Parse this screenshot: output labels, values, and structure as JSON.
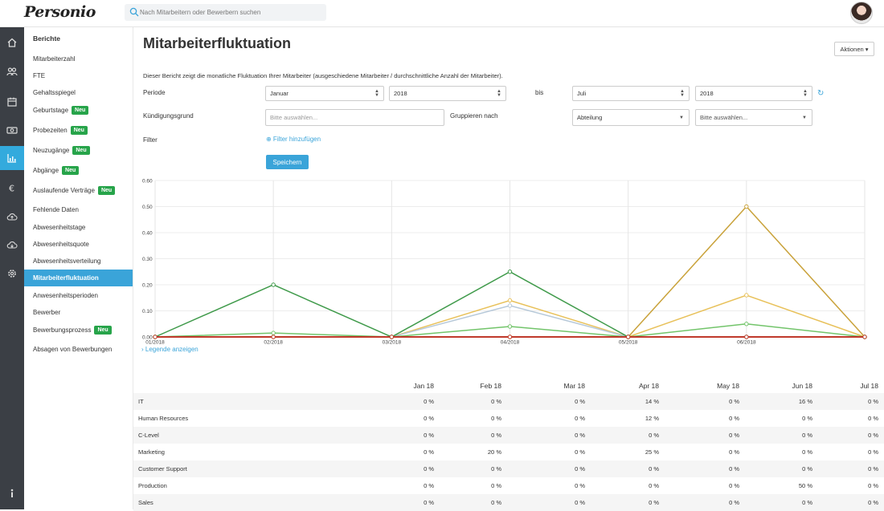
{
  "app": {
    "logo": "Personio"
  },
  "search": {
    "placeholder": "Nach Mitarbeitern oder Bewerbern suchen"
  },
  "rail": {
    "icons": [
      "home-icon",
      "people-icon",
      "calendar-icon",
      "money-icon",
      "chart-icon",
      "euro-icon",
      "cloud-upload-icon",
      "cloud-download-icon",
      "gear-icon",
      "info-icon"
    ],
    "active": "chart-icon",
    "colors": {
      "bg": "#3b3f45",
      "active": "#33aadd"
    }
  },
  "subnav": {
    "title": "Berichte",
    "items": [
      {
        "label": "Mitarbeiterzahl",
        "badge": ""
      },
      {
        "label": "FTE",
        "badge": ""
      },
      {
        "label": "Gehaltsspiegel",
        "badge": ""
      },
      {
        "label": "Geburtstage",
        "badge": "Neu"
      },
      {
        "label": "Probezeiten",
        "badge": "Neu"
      },
      {
        "label": "Neuzugänge",
        "badge": "Neu"
      },
      {
        "label": "Abgänge",
        "badge": "Neu"
      },
      {
        "label": "Auslaufende Verträge",
        "badge": "Neu"
      },
      {
        "label": "Fehlende Daten",
        "badge": ""
      },
      {
        "label": "Abwesenheitstage",
        "badge": ""
      },
      {
        "label": "Abwesenheitsquote",
        "badge": ""
      },
      {
        "label": "Abwesenheitsverteilung",
        "badge": ""
      },
      {
        "label": "Mitarbeiterfluktuation",
        "badge": "",
        "active": true
      },
      {
        "label": "Anwesenheitsperioden",
        "badge": ""
      },
      {
        "label": "Bewerber",
        "badge": ""
      },
      {
        "label": "Bewerbungsprozess",
        "badge": "Neu"
      },
      {
        "label": "Absagen von Bewerbungen",
        "badge": ""
      }
    ]
  },
  "main": {
    "title": "Mitarbeiterfluktuation",
    "actions_label": "Aktionen ▾",
    "description": "Dieser Bericht zeigt die monatliche Fluktuation Ihrer Mitarbeiter (ausgeschiedene Mitarbeiter / durchschnittliche Anzahl der Mitarbeiter).",
    "periode_label": "Periode",
    "from_month": "Januar",
    "from_year": "2018",
    "bis_label": "bis",
    "to_month": "Juli",
    "to_year": "2018",
    "kuendigung_label": "Kündigungsgrund",
    "kuendigung_placeholder": "Bitte auswählen...",
    "gruppieren_label": "Gruppieren nach",
    "group_by": "Abteilung",
    "group_value": "Bitte auswählen...",
    "filter_label": "Filter",
    "filter_link": "⊕ Filter hinzufügen",
    "save_label": "Speichern",
    "legend_link": "› Legende anzeigen"
  },
  "chart_data": {
    "type": "line",
    "x": [
      "01/2018",
      "02/2018",
      "03/2018",
      "04/2018",
      "05/2018",
      "06/2018",
      "07/2018"
    ],
    "x_tick_labels": [
      "01/2018",
      "02/2018",
      "03/2018",
      "04/2018",
      "05/2018",
      "06/2018"
    ],
    "y_ticks": [
      "0.00",
      "0.10",
      "0.20",
      "0.30",
      "0.40",
      "0.50",
      "0.60"
    ],
    "ylim": [
      0,
      0.6
    ],
    "grid": true,
    "series": [
      {
        "values": [
          0,
          0,
          0,
          0.14,
          0,
          0.16,
          0
        ],
        "color": "#e8c15a"
      },
      {
        "values": [
          0,
          0,
          0,
          0.12,
          0,
          0,
          0
        ],
        "color": "#b7c9d9"
      },
      {
        "values": [
          0,
          0.2,
          0,
          0.25,
          0,
          0,
          0
        ],
        "color": "#3f9a4a"
      },
      {
        "values": [
          0,
          0,
          0,
          0,
          0,
          0.5,
          0
        ],
        "color": "#c9a23a"
      },
      {
        "values": [
          0,
          0.015,
          0,
          0.04,
          0,
          0.05,
          0
        ],
        "color": "#72c46a"
      },
      {
        "values": [
          0,
          0,
          0,
          0,
          0,
          0,
          0
        ],
        "color": "#c0392b"
      }
    ]
  },
  "table": {
    "columns": [
      "Jan 18",
      "Feb 18",
      "Mar 18",
      "Apr 18",
      "May 18",
      "Jun 18",
      "Jul 18"
    ],
    "rows": [
      {
        "name": "IT",
        "values": [
          "0 %",
          "0 %",
          "0 %",
          "14 %",
          "0 %",
          "16 %",
          "0 %"
        ]
      },
      {
        "name": "Human Resources",
        "values": [
          "0 %",
          "0 %",
          "0 %",
          "12 %",
          "0 %",
          "0 %",
          "0 %"
        ]
      },
      {
        "name": "C-Level",
        "values": [
          "0 %",
          "0 %",
          "0 %",
          "0 %",
          "0 %",
          "0 %",
          "0 %"
        ]
      },
      {
        "name": "Marketing",
        "values": [
          "0 %",
          "20 %",
          "0 %",
          "25 %",
          "0 %",
          "0 %",
          "0 %"
        ]
      },
      {
        "name": "Customer Support",
        "values": [
          "0 %",
          "0 %",
          "0 %",
          "0 %",
          "0 %",
          "0 %",
          "0 %"
        ]
      },
      {
        "name": "Production",
        "values": [
          "0 %",
          "0 %",
          "0 %",
          "0 %",
          "0 %",
          "50 %",
          "0 %"
        ]
      },
      {
        "name": "Sales",
        "values": [
          "0 %",
          "0 %",
          "0 %",
          "0 %",
          "0 %",
          "0 %",
          "0 %"
        ]
      }
    ]
  }
}
